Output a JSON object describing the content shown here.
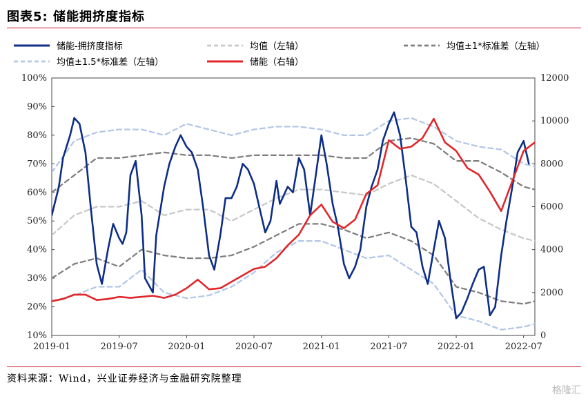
{
  "figure": {
    "title": "图表5: 储能拥挤度指标",
    "source": "资料来源：Wind，兴业证券经济与金融研究院整理",
    "watermark": "格隆汇"
  },
  "chart_data": {
    "type": "line",
    "x_ticks": [
      "2019-01",
      "2019-07",
      "2020-01",
      "2020-07",
      "2021-01",
      "2021-07",
      "2022-01",
      "2022-07"
    ],
    "x_range": [
      "2019-01",
      "2022-08"
    ],
    "left_axis": {
      "range": [
        10,
        100
      ],
      "ticks": [
        "10%",
        "20%",
        "30%",
        "40%",
        "50%",
        "60%",
        "70%",
        "80%",
        "90%",
        "100%"
      ]
    },
    "right_axis": {
      "range": [
        0,
        12000
      ],
      "ticks": [
        "0",
        "2000",
        "4000",
        "6000",
        "8000",
        "10000",
        "12000"
      ]
    },
    "grid": false,
    "legend_position": "top",
    "series": [
      {
        "name": "储能-拥挤度指标",
        "axis": "left",
        "color": "#0d2d86",
        "style": "solid",
        "x": [
          "2019-01",
          "2019-01-20",
          "2019-02",
          "2019-02-20",
          "2019-03",
          "2019-03-15",
          "2019-04",
          "2019-04-15",
          "2019-05",
          "2019-05-15",
          "2019-06",
          "2019-06-15",
          "2019-07",
          "2019-07-10",
          "2019-07-20",
          "2019-08",
          "2019-08-15",
          "2019-09",
          "2019-09-10",
          "2019-10",
          "2019-10-10",
          "2019-11",
          "2019-11-15",
          "2019-12",
          "2019-12-15",
          "2020-01",
          "2020-01-15",
          "2020-02",
          "2020-02-15",
          "2020-03",
          "2020-03-15",
          "2020-04",
          "2020-04-15",
          "2020-05",
          "2020-05-15",
          "2020-06",
          "2020-06-15",
          "2020-07",
          "2020-07-15",
          "2020-08",
          "2020-08-15",
          "2020-09",
          "2020-09-10",
          "2020-10",
          "2020-10-15",
          "2020-11",
          "2020-11-15",
          "2020-12",
          "2020-12-15",
          "2021-01",
          "2021-01-15",
          "2021-02",
          "2021-02-15",
          "2021-03",
          "2021-03-15",
          "2021-04",
          "2021-04-15",
          "2021-05",
          "2021-05-15",
          "2021-06",
          "2021-06-15",
          "2021-07",
          "2021-07-15",
          "2021-08",
          "2021-08-15",
          "2021-09",
          "2021-09-15",
          "2021-10",
          "2021-10-15",
          "2021-11",
          "2021-11-15",
          "2021-12",
          "2021-12-15",
          "2022-01",
          "2022-01-15",
          "2022-02",
          "2022-02-15",
          "2022-03",
          "2022-03-15",
          "2022-04",
          "2022-04-15",
          "2022-05",
          "2022-05-15",
          "2022-06",
          "2022-06-15",
          "2022-07",
          "2022-07-15"
        ],
        "y": [
          52,
          62,
          72,
          80,
          86,
          84,
          74,
          55,
          35,
          28,
          40,
          49,
          44,
          42,
          46,
          66,
          71,
          52,
          30,
          25,
          45,
          62,
          70,
          76,
          80,
          76,
          74,
          68,
          55,
          38,
          33,
          45,
          58,
          58,
          62,
          70,
          68,
          63,
          55,
          46,
          50,
          64,
          56,
          62,
          60,
          72,
          68,
          52,
          65,
          80,
          70,
          56,
          48,
          35,
          30,
          34,
          40,
          55,
          62,
          68,
          78,
          84,
          88,
          80,
          66,
          48,
          46,
          34,
          28,
          40,
          50,
          44,
          30,
          16,
          18,
          23,
          28,
          33,
          34,
          17,
          20,
          38,
          50,
          62,
          74,
          78,
          70
        ]
      },
      {
        "name": "均值（左轴）",
        "axis": "left",
        "color": "#c8c8c8",
        "style": "dash",
        "x": [
          "2019-01",
          "2019-03",
          "2019-05",
          "2019-07",
          "2019-09",
          "2019-11",
          "2020-01",
          "2020-03",
          "2020-05",
          "2020-07",
          "2020-09",
          "2020-11",
          "2021-01",
          "2021-03",
          "2021-05",
          "2021-07",
          "2021-09",
          "2021-11",
          "2022-01",
          "2022-03",
          "2022-05",
          "2022-07",
          "2022-08"
        ],
        "y": [
          45,
          52,
          55,
          55,
          57,
          52,
          54,
          54,
          50,
          54,
          58,
          61,
          61,
          60,
          59,
          63,
          66,
          63,
          57,
          51,
          47,
          44,
          43
        ]
      },
      {
        "name": "均值±1*标准差（左轴）",
        "axis": "left",
        "color": "#7f7f7f",
        "style": "dash",
        "x": [
          "2019-01",
          "2019-03",
          "2019-05",
          "2019-07",
          "2019-09",
          "2019-11",
          "2020-01",
          "2020-03",
          "2020-05",
          "2020-07",
          "2020-09",
          "2020-11",
          "2021-01",
          "2021-03",
          "2021-05",
          "2021-07",
          "2021-09",
          "2021-11",
          "2022-01",
          "2022-03",
          "2022-05",
          "2022-07",
          "2022-08"
        ],
        "y": [
          60,
          66,
          72,
          72,
          73,
          74,
          73,
          73,
          72,
          73,
          73,
          73,
          73,
          72,
          72,
          78,
          79,
          77,
          71,
          71,
          67,
          62,
          61
        ],
        "y_lower": [
          30,
          35,
          37,
          34,
          40,
          38,
          37,
          37,
          38,
          41,
          45,
          49,
          49,
          47,
          44,
          46,
          43,
          38,
          27,
          25,
          22,
          21,
          22
        ]
      },
      {
        "name": "均值±1.5*标准差（左轴）",
        "axis": "left",
        "color": "#b4c7e7",
        "style": "dash",
        "x": [
          "2019-01",
          "2019-03",
          "2019-05",
          "2019-07",
          "2019-09",
          "2019-11",
          "2020-01",
          "2020-03",
          "2020-05",
          "2020-07",
          "2020-09",
          "2020-11",
          "2021-01",
          "2021-03",
          "2021-05",
          "2021-07",
          "2021-09",
          "2021-11",
          "2022-01",
          "2022-03",
          "2022-05",
          "2022-07",
          "2022-08"
        ],
        "y": [
          67,
          78,
          81,
          82,
          82,
          80,
          84,
          82,
          80,
          82,
          83,
          83,
          82,
          80,
          80,
          85,
          86,
          83,
          78,
          76,
          75,
          70,
          69
        ],
        "y_lower": [
          22,
          24,
          27,
          27,
          33,
          25,
          23,
          24,
          27,
          32,
          39,
          43,
          43,
          40,
          37,
          38,
          33,
          28,
          17,
          15,
          12,
          13,
          14
        ]
      },
      {
        "name": "储能（右轴）",
        "axis": "right",
        "color": "#e0262b",
        "style": "solid",
        "x": [
          "2019-01",
          "2019-02",
          "2019-03",
          "2019-04",
          "2019-05",
          "2019-06",
          "2019-07",
          "2019-08",
          "2019-09",
          "2019-10",
          "2019-11",
          "2019-12",
          "2020-01",
          "2020-02",
          "2020-03",
          "2020-04",
          "2020-05",
          "2020-06",
          "2020-07",
          "2020-08",
          "2020-09",
          "2020-10",
          "2020-11",
          "2020-12",
          "2021-01",
          "2021-02",
          "2021-03",
          "2021-04",
          "2021-05",
          "2021-06",
          "2021-07",
          "2021-08",
          "2021-09",
          "2021-10",
          "2021-11",
          "2021-12",
          "2022-01",
          "2022-02",
          "2022-03",
          "2022-04",
          "2022-05",
          "2022-06",
          "2022-07",
          "2022-08"
        ],
        "y": [
          1600,
          1700,
          1900,
          1900,
          1650,
          1700,
          1800,
          1750,
          1800,
          1850,
          1750,
          1900,
          2200,
          2600,
          2150,
          2200,
          2500,
          2800,
          3100,
          3200,
          3600,
          4200,
          4700,
          5600,
          6100,
          5300,
          5000,
          5400,
          6600,
          7000,
          9100,
          8700,
          8800,
          9200,
          10100,
          9000,
          8600,
          7800,
          7500,
          6700,
          5800,
          7200,
          8600,
          9000
        ]
      }
    ]
  }
}
